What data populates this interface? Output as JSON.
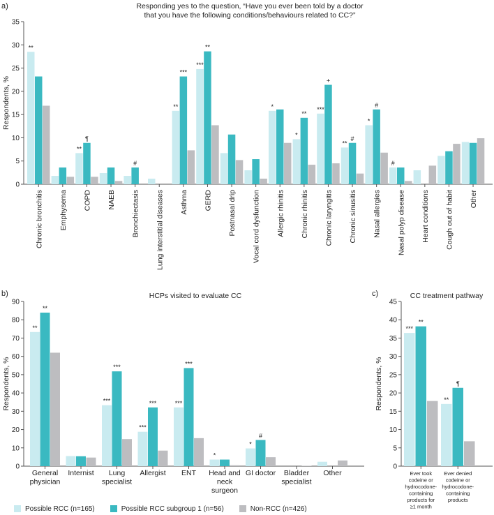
{
  "colors": {
    "light": "#c9ebf0",
    "teal": "#3ab9c1",
    "grey": "#bdbdc0",
    "axis": "#555555",
    "text": "#222222"
  },
  "legend": [
    {
      "label": "Possible RCC (n=165)",
      "color": "#c9ebf0"
    },
    {
      "label": "Possible RCC subgroup 1 (n=56)",
      "color": "#3ab9c1"
    },
    {
      "label": "Non-RCC (n=426)",
      "color": "#bdbdc0"
    }
  ],
  "chart_data": [
    {
      "panel": "a)",
      "type": "bar",
      "title": "Responding yes to the question, “Have you ever been told by a doctor that you have the following conditions/behaviours related to CC?”",
      "title_lines": [
        "Responding yes to the question, “Have you ever been told by a doctor",
        "that you have the following conditions/behaviours related to CC?”"
      ],
      "ylabel": "Respondents, %",
      "ylim": [
        0,
        35
      ],
      "yticks": [
        0,
        5,
        10,
        15,
        20,
        25,
        30,
        35
      ],
      "categories": [
        "Chronic bronchitis",
        "Emphysema",
        "COPD",
        "NAEB",
        "Bronchiectasis",
        "Lung interstitial diseases",
        "Asthma",
        "GERD",
        "Postnasal drip",
        "Vocal cord dysfunction",
        "Allergic rhinitis",
        "Chronic rhinitis",
        "Chronic laryngitis",
        "Chronic sinusitis",
        "Nasal allergies",
        "Nasal polyp disease",
        "Heart conditions",
        "Cough out of habit",
        "Other"
      ],
      "series": [
        {
          "name": "Possible RCC (n=165)",
          "values": [
            28.5,
            1.8,
            6.7,
            2.4,
            1.8,
            1.2,
            15.8,
            24.8,
            6.7,
            3.0,
            15.8,
            9.7,
            15.2,
            7.9,
            12.7,
            3.6,
            3.0,
            6.1,
            9.1
          ]
        },
        {
          "name": "Possible RCC subgroup 1 (n=56)",
          "values": [
            23.2,
            3.6,
            8.9,
            3.6,
            3.6,
            0,
            23.2,
            28.6,
            10.7,
            5.4,
            16.1,
            14.3,
            21.4,
            8.9,
            16.1,
            3.6,
            0,
            7.1,
            8.9
          ]
        },
        {
          "name": "Non-RCC (n=426)",
          "values": [
            16.9,
            1.6,
            1.6,
            0.7,
            0,
            0,
            7.3,
            12.7,
            5.2,
            1.2,
            8.9,
            4.2,
            4.5,
            2.3,
            6.8,
            0.7,
            4.0,
            8.7,
            9.9
          ]
        }
      ],
      "annotations": [
        {
          "category": 0,
          "series": 0,
          "text": "**"
        },
        {
          "category": 2,
          "series": 0,
          "text": "**"
        },
        {
          "category": 2,
          "series": 1,
          "text": "¶"
        },
        {
          "category": 4,
          "series": 1,
          "text": "#"
        },
        {
          "category": 6,
          "series": 0,
          "text": "**"
        },
        {
          "category": 6,
          "series": 1,
          "text": "***"
        },
        {
          "category": 7,
          "series": 0,
          "text": "***"
        },
        {
          "category": 7,
          "series": 1,
          "text": "**"
        },
        {
          "category": 10,
          "series": 0,
          "text": "*"
        },
        {
          "category": 11,
          "series": 0,
          "text": "*"
        },
        {
          "category": 11,
          "series": 1,
          "text": "**"
        },
        {
          "category": 12,
          "series": 0,
          "text": "***"
        },
        {
          "category": 12,
          "series": 1,
          "text": "+"
        },
        {
          "category": 13,
          "series": 0,
          "text": "**"
        },
        {
          "category": 13,
          "series": 1,
          "text": "#"
        },
        {
          "category": 14,
          "series": 0,
          "text": "*"
        },
        {
          "category": 14,
          "series": 1,
          "text": "#"
        },
        {
          "category": 15,
          "series": 0,
          "text": "#"
        }
      ]
    },
    {
      "panel": "b)",
      "type": "bar",
      "title": "HCPs visited to evaluate CC",
      "title_lines": [
        "HCPs visited to evaluate CC"
      ],
      "ylabel": "Respondents, %",
      "ylim": [
        0,
        90
      ],
      "yticks": [
        0,
        10,
        20,
        30,
        40,
        50,
        60,
        70,
        80,
        90
      ],
      "categories": [
        "General physician",
        "Internist",
        "Lung specialist",
        "Allergist",
        "ENT",
        "Head and neck surgeon",
        "GI doctor",
        "Bladder specialist",
        "Other"
      ],
      "category_lines": [
        [
          "General",
          "physician"
        ],
        [
          "Internist"
        ],
        [
          "Lung",
          "specialist"
        ],
        [
          "Allergist"
        ],
        [
          "ENT"
        ],
        [
          "Head and",
          "neck",
          "surgeon"
        ],
        [
          "GI doctor"
        ],
        [
          "Bladder",
          "specialist"
        ],
        [
          "Other"
        ]
      ],
      "series": [
        {
          "name": "Possible RCC (n=165)",
          "values": [
            73.3,
            5.5,
            33.3,
            18.8,
            32.1,
            3.6,
            9.7,
            0,
            2.4
          ]
        },
        {
          "name": "Possible RCC subgroup 1 (n=56)",
          "values": [
            83.9,
            5.4,
            51.8,
            32.1,
            53.6,
            3.6,
            14.3,
            0,
            0
          ]
        },
        {
          "name": "Non-RCC (n=426)",
          "values": [
            62.0,
            4.7,
            14.8,
            8.5,
            15.3,
            0.5,
            4.9,
            0.2,
            3.1
          ]
        }
      ],
      "annotations": [
        {
          "category": 0,
          "series": 0,
          "text": "**"
        },
        {
          "category": 0,
          "series": 1,
          "text": "**"
        },
        {
          "category": 2,
          "series": 0,
          "text": "***"
        },
        {
          "category": 2,
          "series": 1,
          "text": "***"
        },
        {
          "category": 3,
          "series": 0,
          "text": "***"
        },
        {
          "category": 3,
          "series": 1,
          "text": "***"
        },
        {
          "category": 4,
          "series": 0,
          "text": "***"
        },
        {
          "category": 4,
          "series": 1,
          "text": "***"
        },
        {
          "category": 5,
          "series": 0,
          "text": "*"
        },
        {
          "category": 6,
          "series": 0,
          "text": "*"
        },
        {
          "category": 6,
          "series": 1,
          "text": "#"
        }
      ]
    },
    {
      "panel": "c)",
      "type": "bar",
      "title": "CC treatment pathway",
      "title_lines": [
        "CC treatment pathway"
      ],
      "ylabel": "Respondents, %",
      "ylim": [
        0,
        45
      ],
      "yticks": [
        0,
        5,
        10,
        15,
        20,
        25,
        30,
        35,
        40,
        45
      ],
      "categories": [
        "Ever took codeine or hydrocodone-containing products for ≥1 month",
        "Ever denied codeine or hydrocodone-containing products"
      ],
      "category_lines": [
        [
          "Ever took",
          "codeine or",
          "hydrocodone-",
          "containing",
          "products for",
          "≥1 month"
        ],
        [
          "Ever denied",
          "codeine or",
          "hydrocodone-",
          "containing",
          "products"
        ]
      ],
      "series": [
        {
          "name": "Possible RCC (n=165)",
          "values": [
            36.4,
            17.0
          ]
        },
        {
          "name": "Possible RCC subgroup 1 (n=56)",
          "values": [
            38.2,
            21.4
          ]
        },
        {
          "name": "Non-RCC (n=426)",
          "values": [
            17.8,
            6.8
          ]
        }
      ],
      "annotations": [
        {
          "category": 0,
          "series": 0,
          "text": "***"
        },
        {
          "category": 0,
          "series": 1,
          "text": "**"
        },
        {
          "category": 1,
          "series": 0,
          "text": "**"
        },
        {
          "category": 1,
          "series": 1,
          "text": "¶"
        }
      ]
    }
  ]
}
